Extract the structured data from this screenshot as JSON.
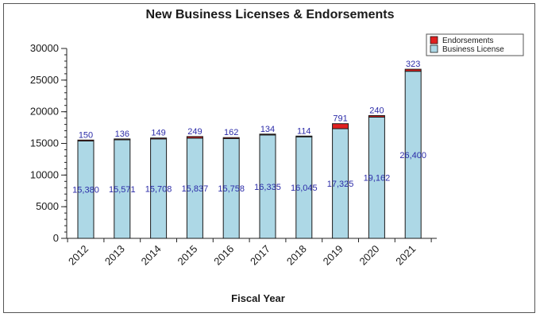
{
  "chart_data": {
    "type": "bar",
    "stacked": true,
    "title": "New Business Licenses & Endorsements",
    "xlabel": "Fiscal Year",
    "ylabel": "",
    "ylim": [
      0,
      30000
    ],
    "yticks": [
      0,
      5000,
      10000,
      15000,
      20000,
      25000,
      30000
    ],
    "categories": [
      "2012",
      "2013",
      "2014",
      "2015",
      "2016",
      "2017",
      "2018",
      "2019",
      "2020",
      "2021"
    ],
    "series": [
      {
        "name": "Business License",
        "color": "#add8e6",
        "values": [
          15380,
          15571,
          15708,
          15837,
          15758,
          16335,
          16045,
          17325,
          19162,
          26400
        ],
        "labels": [
          "15,380",
          "15,571",
          "15,708",
          "15,837",
          "15,758",
          "16,335",
          "16,045",
          "17,325",
          "19,162",
          "26,400"
        ]
      },
      {
        "name": "Endorsements",
        "color": "#e02020",
        "values": [
          150,
          136,
          149,
          249,
          162,
          134,
          114,
          791,
          240,
          323
        ],
        "labels": [
          "150",
          "136",
          "149",
          "249",
          "162",
          "134",
          "114",
          "791",
          "240",
          "323"
        ]
      }
    ],
    "legend": {
      "placement": "top-right",
      "entries": [
        "Endorsements",
        "Business License"
      ]
    },
    "grid": false
  }
}
